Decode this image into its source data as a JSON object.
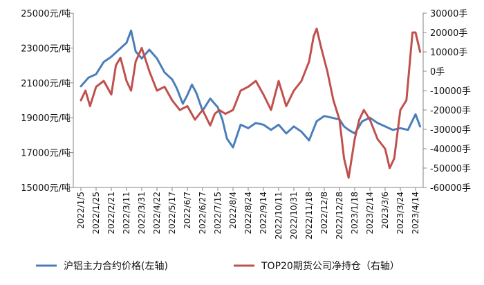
{
  "chart_data": {
    "type": "line",
    "title": "",
    "x_tick_labels": [
      "2022/1/5",
      "2022/1/25",
      "2022/2/21",
      "2022/3/11",
      "2022/3/31",
      "2022/4/22",
      "2022/5/17",
      "2022/6/7",
      "2022/6/27",
      "2022/7/15",
      "2022/8/4",
      "2022/8/24",
      "2022/9/14",
      "2022/10/11",
      "2022/10/31",
      "2022/11/18",
      "2022/12/8",
      "2022/12/28",
      "2023/1/18",
      "2023/2/14",
      "2023/3/6",
      "2023/3/24",
      "2023/4/14"
    ],
    "y_left": {
      "ticks": [
        15000,
        17000,
        19000,
        21000,
        23000,
        25000
      ],
      "tick_labels": [
        "15000元/吨",
        "17000元/吨",
        "19000元/吨",
        "21000元/吨",
        "23000元/吨",
        "25000元/吨"
      ],
      "range": [
        15000,
        25000
      ]
    },
    "y_right": {
      "ticks": [
        -60000,
        -50000,
        -40000,
        -30000,
        -20000,
        -10000,
        0,
        10000,
        20000,
        30000
      ],
      "tick_labels": [
        "-60000手",
        "-50000手",
        "-40000手",
        "-30000手",
        "-20000手",
        "-10000手",
        "0手",
        "10000手",
        "20000手",
        "30000手"
      ],
      "range": [
        -60000,
        30000
      ]
    },
    "grid": false,
    "legend_position": "bottom",
    "series": [
      {
        "name": "沪铝主力合约价格(左轴)",
        "axis": "left",
        "color": "#4a7ebb",
        "x": [
          0,
          0.5,
          1,
          1.5,
          2,
          2.5,
          3,
          3.3,
          3.6,
          4,
          4.5,
          5,
          5.5,
          6,
          6.3,
          6.7,
          7,
          7.3,
          7.6,
          8,
          8.5,
          9,
          9.3,
          9.6,
          10,
          10.5,
          11,
          11.5,
          12,
          12.5,
          13,
          13.5,
          14,
          14.5,
          15,
          15.5,
          16,
          16.5,
          17,
          17.3,
          17.6,
          18,
          18.5,
          19,
          19.5,
          20,
          20.5,
          21,
          21.5,
          22,
          22.3
        ],
        "values": [
          20800,
          21300,
          21500,
          22200,
          22500,
          22900,
          23300,
          24000,
          22800,
          22400,
          22900,
          22400,
          21600,
          21200,
          20700,
          19800,
          20300,
          20900,
          20400,
          19400,
          20100,
          19600,
          18900,
          17800,
          17300,
          18600,
          18400,
          18700,
          18600,
          18300,
          18600,
          18100,
          18500,
          18200,
          17700,
          18800,
          19100,
          19000,
          18900,
          18500,
          18300,
          18100,
          18800,
          19000,
          18700,
          18500,
          18300,
          18400,
          18300,
          19200,
          18500
        ]
      },
      {
        "name": "TOP20期货公司净持仓（右轴）",
        "axis": "right",
        "color": "#c0504d",
        "x": [
          0,
          0.3,
          0.6,
          1,
          1.5,
          2,
          2.3,
          2.6,
          3,
          3.3,
          3.6,
          4,
          4.5,
          5,
          5.5,
          6,
          6.5,
          7,
          7.5,
          8,
          8.5,
          8.8,
          9.1,
          9.5,
          10,
          10.5,
          11,
          11.5,
          12,
          12.5,
          13,
          13.5,
          14,
          14.5,
          15,
          15.3,
          15.5,
          15.8,
          16.2,
          16.6,
          17,
          17.3,
          17.6,
          18,
          18.3,
          18.6,
          19,
          19.5,
          20,
          20.3,
          20.6,
          21,
          21.4,
          21.8,
          22,
          22.3
        ],
        "values": [
          -15000,
          -10000,
          -18000,
          -8000,
          -5000,
          -12000,
          3000,
          7000,
          -5000,
          -10000,
          5000,
          12000,
          0,
          -10000,
          -8000,
          -15000,
          -20000,
          -18000,
          -25000,
          -20000,
          -28000,
          -22000,
          -20000,
          -22000,
          -20000,
          -10000,
          -8000,
          -5000,
          -12000,
          -20000,
          -5000,
          -18000,
          -10000,
          -5000,
          5000,
          18000,
          22000,
          12000,
          0,
          -15000,
          -25000,
          -45000,
          -55000,
          -35000,
          -25000,
          -20000,
          -25000,
          -35000,
          -40000,
          -50000,
          -45000,
          -20000,
          -15000,
          20000,
          20000,
          10000
        ]
      }
    ]
  }
}
